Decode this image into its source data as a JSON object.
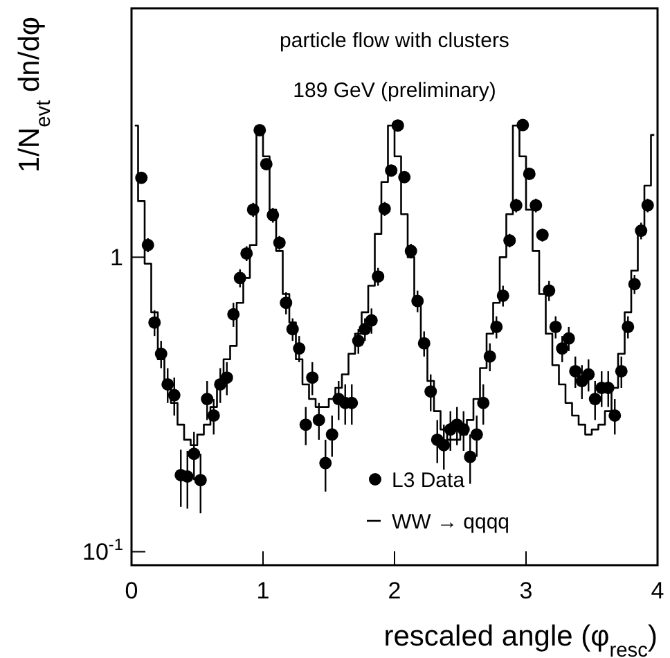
{
  "chart_data": {
    "type": "scatter",
    "title": "particle flow with clusters",
    "subtitle": "189 GeV (preliminary)",
    "xlabel": "rescaled angle (φ$_{resc}$)",
    "ylabel": "1/N$_{evt}$ dn/dφ",
    "log": "y",
    "xlim": [
      0,
      4
    ],
    "ylim": [
      0.09,
      7
    ],
    "xticks": [
      0,
      1,
      2,
      3,
      4
    ],
    "yticks": [
      {
        "value": 0.1,
        "label": "10$^{-1}$"
      },
      1
    ],
    "legend": "bottom",
    "grid": false,
    "series": [
      {
        "name": "L3 Data",
        "marker": "circle",
        "color": "#000000",
        "x": [
          0.075,
          0.125,
          0.175,
          0.225,
          0.275,
          0.325,
          0.375,
          0.425,
          0.475,
          0.525,
          0.575,
          0.625,
          0.675,
          0.725,
          0.775,
          0.825,
          0.875,
          0.925,
          0.975,
          1.025,
          1.075,
          1.125,
          1.175,
          1.225,
          1.275,
          1.325,
          1.375,
          1.425,
          1.475,
          1.525,
          1.575,
          1.625,
          1.675,
          1.725,
          1.775,
          1.825,
          1.875,
          1.925,
          1.975,
          2.025,
          2.075,
          2.125,
          2.175,
          2.225,
          2.275,
          2.325,
          2.375,
          2.425,
          2.475,
          2.525,
          2.575,
          2.625,
          2.675,
          2.725,
          2.775,
          2.825,
          2.875,
          2.925,
          2.975,
          3.025,
          3.075,
          3.125,
          3.175,
          3.225,
          3.275,
          3.325,
          3.375,
          3.425,
          3.475,
          3.525,
          3.575,
          3.625,
          3.675,
          3.725,
          3.775,
          3.825,
          3.875,
          3.925
        ],
        "values": [
          1.86,
          1.1,
          0.6,
          0.47,
          0.37,
          0.34,
          0.182,
          0.18,
          0.215,
          0.175,
          0.33,
          0.29,
          0.37,
          0.39,
          0.64,
          0.85,
          1.03,
          1.45,
          2.7,
          2.07,
          1.39,
          1.12,
          0.7,
          0.57,
          0.49,
          0.27,
          0.39,
          0.28,
          0.2,
          0.25,
          0.33,
          0.32,
          0.32,
          0.52,
          0.57,
          0.61,
          0.86,
          1.46,
          1.97,
          2.8,
          1.87,
          1.05,
          0.71,
          0.51,
          0.35,
          0.24,
          0.23,
          0.26,
          0.27,
          0.26,
          0.21,
          0.25,
          0.32,
          0.46,
          0.58,
          0.74,
          1.14,
          1.5,
          2.81,
          1.92,
          1.5,
          1.19,
          0.77,
          0.58,
          0.49,
          0.53,
          0.41,
          0.38,
          0.4,
          0.33,
          0.36,
          0.36,
          0.29,
          0.41,
          0.58,
          0.81,
          1.23,
          1.5
        ],
        "errors": [
          0.08,
          0.06,
          0.06,
          0.05,
          0.05,
          0.05,
          0.04,
          0.04,
          0.04,
          0.04,
          0.05,
          0.04,
          0.05,
          0.05,
          0.06,
          0.06,
          0.06,
          0.08,
          0.08,
          0.08,
          0.08,
          0.06,
          0.06,
          0.05,
          0.05,
          0.04,
          0.05,
          0.04,
          0.04,
          0.04,
          0.05,
          0.05,
          0.05,
          0.05,
          0.05,
          0.06,
          0.06,
          0.08,
          0.08,
          0.08,
          0.08,
          0.06,
          0.06,
          0.05,
          0.05,
          0.04,
          0.04,
          0.04,
          0.04,
          0.04,
          0.04,
          0.04,
          0.05,
          0.05,
          0.05,
          0.06,
          0.06,
          0.08,
          0.08,
          0.08,
          0.08,
          0.06,
          0.06,
          0.05,
          0.05,
          0.05,
          0.05,
          0.05,
          0.05,
          0.05,
          0.05,
          0.05,
          0.04,
          0.05,
          0.05,
          0.06,
          0.08,
          0.08
        ]
      },
      {
        "name": "WW → qqqq",
        "type": "step",
        "color": "#000000",
        "x": [
          0.025,
          0.075,
          0.125,
          0.175,
          0.225,
          0.275,
          0.325,
          0.375,
          0.425,
          0.475,
          0.525,
          0.575,
          0.625,
          0.675,
          0.725,
          0.775,
          0.825,
          0.875,
          0.925,
          0.975,
          1.025,
          1.075,
          1.125,
          1.175,
          1.225,
          1.275,
          1.325,
          1.375,
          1.425,
          1.475,
          1.525,
          1.575,
          1.625,
          1.675,
          1.725,
          1.775,
          1.825,
          1.875,
          1.925,
          1.975,
          2.025,
          2.075,
          2.125,
          2.175,
          2.225,
          2.275,
          2.325,
          2.375,
          2.425,
          2.475,
          2.525,
          2.575,
          2.625,
          2.675,
          2.725,
          2.775,
          2.825,
          2.875,
          2.925,
          2.975,
          3.025,
          3.075,
          3.125,
          3.175,
          3.225,
          3.275,
          3.325,
          3.375,
          3.425,
          3.475,
          3.525,
          3.575,
          3.625,
          3.675,
          3.725,
          3.775,
          3.825,
          3.875,
          3.925,
          3.975
        ],
        "values": [
          2.8,
          1.55,
          0.95,
          0.65,
          0.45,
          0.38,
          0.32,
          0.27,
          0.24,
          0.23,
          0.25,
          0.27,
          0.31,
          0.36,
          0.45,
          0.5,
          0.7,
          0.85,
          1.1,
          2.7,
          2.2,
          1.45,
          1.05,
          0.75,
          0.6,
          0.45,
          0.37,
          0.33,
          0.31,
          0.31,
          0.33,
          0.36,
          0.4,
          0.47,
          0.55,
          0.65,
          0.8,
          1.2,
          1.8,
          2.8,
          2.2,
          1.4,
          1.0,
          0.7,
          0.5,
          0.38,
          0.3,
          0.26,
          0.24,
          0.24,
          0.25,
          0.28,
          0.33,
          0.42,
          0.55,
          0.7,
          1.0,
          1.4,
          2.8,
          2.2,
          1.45,
          1.05,
          0.75,
          0.55,
          0.43,
          0.37,
          0.32,
          0.29,
          0.27,
          0.25,
          0.26,
          0.27,
          0.3,
          0.36,
          0.47,
          0.65,
          0.9,
          1.25,
          1.75,
          2.6
        ]
      }
    ]
  }
}
